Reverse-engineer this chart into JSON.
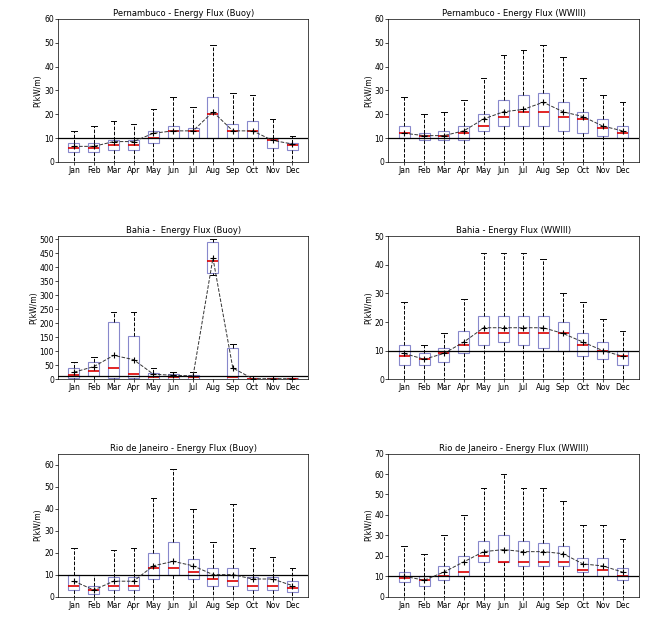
{
  "titles": [
    "Pernambuco - Energy Flux (Buoy)",
    "Pernambuco - Energy Flux (WWIII)",
    "Bahia -  Energy Flux (Buoy)",
    "Bahia - Energy Flux (WWIII)",
    "Rio de Janeiro - Energy Flux (Buoy)",
    "Rio de Janeiro - Energy Flux (WWIII)"
  ],
  "months": [
    "Jan",
    "Feb",
    "Mar",
    "Apr",
    "May",
    "Jun",
    "Jul",
    "Aug",
    "Sep",
    "Oct",
    "Nov",
    "Dec"
  ],
  "ylabel": "P(kW/m)",
  "hline_value": 10,
  "box_color": "#8888cc",
  "median_color": "#dd0000",
  "whisker_color": "#000000",
  "panels": [
    {
      "ylim": [
        0,
        60
      ],
      "yticks": [
        0,
        10,
        20,
        30,
        40,
        50,
        60
      ],
      "data": {
        "Jan": {
          "q1": 4,
          "med": 6,
          "q3": 8,
          "whislo": 0,
          "whishi": 13,
          "mean": 6.5
        },
        "Feb": {
          "q1": 4,
          "med": 6,
          "q3": 8,
          "whislo": 0,
          "whishi": 15,
          "mean": 6.5
        },
        "Mar": {
          "q1": 5,
          "med": 7,
          "q3": 9,
          "whislo": 0,
          "whishi": 17,
          "mean": 8.5
        },
        "Apr": {
          "q1": 5,
          "med": 7,
          "q3": 9,
          "whislo": 0,
          "whishi": 16,
          "mean": 8.5
        },
        "May": {
          "q1": 8,
          "med": 10,
          "q3": 13,
          "whislo": 0,
          "whishi": 22,
          "mean": 12
        },
        "Jun": {
          "q1": 10,
          "med": 13,
          "q3": 15,
          "whislo": 0,
          "whishi": 27,
          "mean": 13
        },
        "Jul": {
          "q1": 10,
          "med": 13,
          "q3": 14,
          "whislo": 0,
          "whishi": 23,
          "mean": 13
        },
        "Aug": {
          "q1": 10,
          "med": 20,
          "q3": 27,
          "whislo": 0,
          "whishi": 49,
          "mean": 21
        },
        "Sep": {
          "q1": 10,
          "med": 13,
          "q3": 16,
          "whislo": 0,
          "whishi": 29,
          "mean": 13
        },
        "Oct": {
          "q1": 10,
          "med": 13,
          "q3": 17,
          "whislo": 0,
          "whishi": 28,
          "mean": 13
        },
        "Nov": {
          "q1": 6,
          "med": 9,
          "q3": 10,
          "whislo": 0,
          "whishi": 18,
          "mean": 9
        },
        "Dec": {
          "q1": 5,
          "med": 7,
          "q3": 8,
          "whislo": 0,
          "whishi": 11,
          "mean": 7.5
        }
      }
    },
    {
      "ylim": [
        0,
        60
      ],
      "yticks": [
        0,
        10,
        20,
        30,
        40,
        50,
        60
      ],
      "data": {
        "Jan": {
          "q1": 10,
          "med": 12,
          "q3": 15,
          "whislo": 0,
          "whishi": 27,
          "mean": 12
        },
        "Feb": {
          "q1": 9,
          "med": 11,
          "q3": 12,
          "whislo": 0,
          "whishi": 20,
          "mean": 11
        },
        "Mar": {
          "q1": 9,
          "med": 11,
          "q3": 13,
          "whislo": 0,
          "whishi": 21,
          "mean": 11
        },
        "Apr": {
          "q1": 9,
          "med": 12,
          "q3": 15,
          "whislo": 0,
          "whishi": 26,
          "mean": 13
        },
        "May": {
          "q1": 13,
          "med": 15,
          "q3": 20,
          "whislo": 0,
          "whishi": 35,
          "mean": 18
        },
        "Jun": {
          "q1": 15,
          "med": 19,
          "q3": 26,
          "whislo": 0,
          "whishi": 45,
          "mean": 21
        },
        "Jul": {
          "q1": 15,
          "med": 21,
          "q3": 28,
          "whislo": 0,
          "whishi": 47,
          "mean": 22
        },
        "Aug": {
          "q1": 15,
          "med": 21,
          "q3": 29,
          "whislo": 0,
          "whishi": 49,
          "mean": 25
        },
        "Sep": {
          "q1": 13,
          "med": 19,
          "q3": 25,
          "whislo": 0,
          "whishi": 44,
          "mean": 21
        },
        "Oct": {
          "q1": 12,
          "med": 18,
          "q3": 21,
          "whislo": 0,
          "whishi": 35,
          "mean": 19
        },
        "Nov": {
          "q1": 11,
          "med": 14,
          "q3": 18,
          "whislo": 0,
          "whishi": 28,
          "mean": 15
        },
        "Dec": {
          "q1": 10,
          "med": 12,
          "q3": 15,
          "whislo": 0,
          "whishi": 25,
          "mean": 13
        }
      }
    },
    {
      "ylim": [
        0,
        510
      ],
      "yticks": [
        0,
        50,
        100,
        150,
        200,
        250,
        300,
        350,
        400,
        450,
        500
      ],
      "data": {
        "Jan": {
          "q1": 5,
          "med": 15,
          "q3": 40,
          "whislo": 0,
          "whishi": 60,
          "mean": 25
        },
        "Feb": {
          "q1": 10,
          "med": 30,
          "q3": 60,
          "whislo": 0,
          "whishi": 80,
          "mean": 45
        },
        "Mar": {
          "q1": 5,
          "med": 40,
          "q3": 205,
          "whislo": 0,
          "whishi": 240,
          "mean": 85
        },
        "Apr": {
          "q1": 5,
          "med": 20,
          "q3": 155,
          "whislo": 0,
          "whishi": 240,
          "mean": 70
        },
        "May": {
          "q1": 2,
          "med": 8,
          "q3": 22,
          "whislo": 0,
          "whishi": 40,
          "mean": 18
        },
        "Jun": {
          "q1": 2,
          "med": 8,
          "q3": 18,
          "whislo": 0,
          "whishi": 27,
          "mean": 14
        },
        "Jul": {
          "q1": 2,
          "med": 8,
          "q3": 16,
          "whislo": 0,
          "whishi": 24,
          "mean": 12
        },
        "Aug": {
          "q1": 380,
          "med": 420,
          "q3": 490,
          "whislo": 370,
          "whishi": 500,
          "mean": 432
        },
        "Sep": {
          "q1": 2,
          "med": 8,
          "q3": 110,
          "whislo": 0,
          "whishi": 125,
          "mean": 40
        },
        "Oct": {
          "q1": 0,
          "med": 2,
          "q3": 4,
          "whislo": 0,
          "whishi": 6,
          "mean": 2
        },
        "Nov": {
          "q1": 0,
          "med": 2,
          "q3": 4,
          "whislo": 0,
          "whishi": 6,
          "mean": 2
        },
        "Dec": {
          "q1": 0,
          "med": 2,
          "q3": 4,
          "whislo": 0,
          "whishi": 6,
          "mean": 2
        }
      }
    },
    {
      "ylim": [
        0,
        50
      ],
      "yticks": [
        0,
        10,
        20,
        30,
        40,
        50
      ],
      "data": {
        "Jan": {
          "q1": 5,
          "med": 8,
          "q3": 12,
          "whislo": 0,
          "whishi": 27,
          "mean": 9
        },
        "Feb": {
          "q1": 5,
          "med": 7,
          "q3": 9,
          "whislo": 0,
          "whishi": 12,
          "mean": 7
        },
        "Mar": {
          "q1": 6,
          "med": 9,
          "q3": 11,
          "whislo": 0,
          "whishi": 16,
          "mean": 9
        },
        "Apr": {
          "q1": 9,
          "med": 12,
          "q3": 17,
          "whislo": 0,
          "whishi": 28,
          "mean": 13
        },
        "May": {
          "q1": 12,
          "med": 16,
          "q3": 22,
          "whislo": 0,
          "whishi": 44,
          "mean": 18
        },
        "Jun": {
          "q1": 13,
          "med": 16,
          "q3": 22,
          "whislo": 0,
          "whishi": 44,
          "mean": 18
        },
        "Jul": {
          "q1": 12,
          "med": 16,
          "q3": 22,
          "whislo": 0,
          "whishi": 44,
          "mean": 18
        },
        "Aug": {
          "q1": 11,
          "med": 16,
          "q3": 22,
          "whislo": 0,
          "whishi": 42,
          "mean": 18
        },
        "Sep": {
          "q1": 10,
          "med": 16,
          "q3": 20,
          "whislo": 0,
          "whishi": 30,
          "mean": 16
        },
        "Oct": {
          "q1": 8,
          "med": 12,
          "q3": 16,
          "whislo": 0,
          "whishi": 27,
          "mean": 13
        },
        "Nov": {
          "q1": 7,
          "med": 10,
          "q3": 13,
          "whislo": 0,
          "whishi": 21,
          "mean": 10
        },
        "Dec": {
          "q1": 5,
          "med": 8,
          "q3": 10,
          "whislo": 0,
          "whishi": 17,
          "mean": 8
        }
      }
    },
    {
      "ylim": [
        0,
        65
      ],
      "yticks": [
        0,
        10,
        20,
        30,
        40,
        50,
        60
      ],
      "data": {
        "Jan": {
          "q1": 3,
          "med": 5,
          "q3": 10,
          "whislo": 0,
          "whishi": 22,
          "mean": 7
        },
        "Feb": {
          "q1": 1,
          "med": 3,
          "q3": 5,
          "whislo": 0,
          "whishi": 10,
          "mean": 3
        },
        "Mar": {
          "q1": 3,
          "med": 5,
          "q3": 9,
          "whislo": 0,
          "whishi": 21,
          "mean": 7
        },
        "Apr": {
          "q1": 3,
          "med": 5,
          "q3": 9,
          "whislo": 0,
          "whishi": 22,
          "mean": 7
        },
        "May": {
          "q1": 8,
          "med": 13,
          "q3": 20,
          "whislo": 0,
          "whishi": 45,
          "mean": 14
        },
        "Jun": {
          "q1": 10,
          "med": 13,
          "q3": 25,
          "whislo": 0,
          "whishi": 58,
          "mean": 16
        },
        "Jul": {
          "q1": 8,
          "med": 11,
          "q3": 17,
          "whislo": 0,
          "whishi": 40,
          "mean": 14
        },
        "Aug": {
          "q1": 5,
          "med": 8,
          "q3": 13,
          "whislo": 0,
          "whishi": 25,
          "mean": 10
        },
        "Sep": {
          "q1": 5,
          "med": 7,
          "q3": 13,
          "whislo": 0,
          "whishi": 42,
          "mean": 10
        },
        "Oct": {
          "q1": 3,
          "med": 5,
          "q3": 9,
          "whislo": 0,
          "whishi": 22,
          "mean": 8
        },
        "Nov": {
          "q1": 3,
          "med": 5,
          "q3": 9,
          "whislo": 0,
          "whishi": 18,
          "mean": 8
        },
        "Dec": {
          "q1": 2,
          "med": 4,
          "q3": 7,
          "whislo": 0,
          "whishi": 13,
          "mean": 5
        }
      }
    },
    {
      "ylim": [
        0,
        70
      ],
      "yticks": [
        0,
        10,
        20,
        30,
        40,
        50,
        60,
        70
      ],
      "data": {
        "Jan": {
          "q1": 7,
          "med": 9,
          "q3": 12,
          "whislo": 0,
          "whishi": 25,
          "mean": 10
        },
        "Feb": {
          "q1": 5,
          "med": 8,
          "q3": 10,
          "whislo": 0,
          "whishi": 21,
          "mean": 8
        },
        "Mar": {
          "q1": 8,
          "med": 10,
          "q3": 15,
          "whislo": 0,
          "whishi": 30,
          "mean": 12
        },
        "Apr": {
          "q1": 10,
          "med": 12,
          "q3": 20,
          "whislo": 0,
          "whishi": 40,
          "mean": 17
        },
        "May": {
          "q1": 17,
          "med": 20,
          "q3": 27,
          "whislo": 0,
          "whishi": 53,
          "mean": 22
        },
        "Jun": {
          "q1": 17,
          "med": 17,
          "q3": 30,
          "whislo": 0,
          "whishi": 60,
          "mean": 23
        },
        "Jul": {
          "q1": 15,
          "med": 17,
          "q3": 27,
          "whislo": 0,
          "whishi": 53,
          "mean": 22
        },
        "Aug": {
          "q1": 15,
          "med": 17,
          "q3": 26,
          "whislo": 0,
          "whishi": 53,
          "mean": 22
        },
        "Sep": {
          "q1": 15,
          "med": 17,
          "q3": 25,
          "whislo": 0,
          "whishi": 47,
          "mean": 21
        },
        "Oct": {
          "q1": 12,
          "med": 13,
          "q3": 19,
          "whislo": 0,
          "whishi": 35,
          "mean": 16
        },
        "Nov": {
          "q1": 10,
          "med": 13,
          "q3": 19,
          "whislo": 0,
          "whishi": 35,
          "mean": 15
        },
        "Dec": {
          "q1": 8,
          "med": 10,
          "q3": 14,
          "whislo": 0,
          "whishi": 28,
          "mean": 12
        }
      }
    }
  ]
}
